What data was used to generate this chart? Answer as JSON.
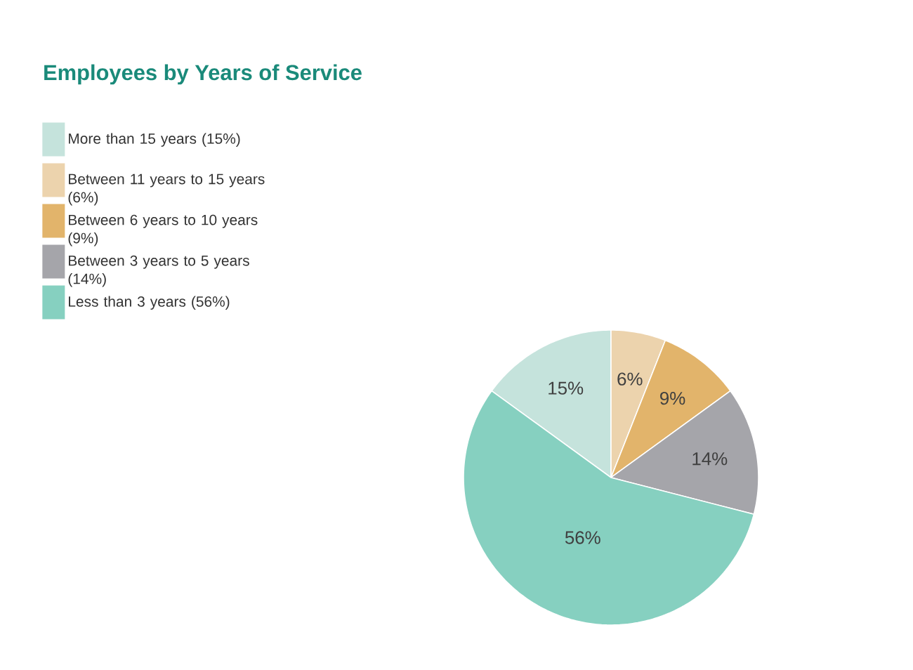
{
  "chart_data": {
    "type": "pie",
    "title": "Employees by Years of Service",
    "categories": [
      "More than 15 years (15%)",
      "Between 11 years to 15 years (6%)",
      "Between 6 years to 10 years (9%)",
      "Between 3 years to 5 years (14%)",
      "Less than 3 years (56%)"
    ],
    "values": [
      15,
      6,
      9,
      14,
      56
    ],
    "value_labels": [
      "15%",
      "6%",
      "9%",
      "14%",
      "56%"
    ],
    "colors": [
      "#c5e3dc",
      "#ecd3ad",
      "#e2b46b",
      "#a5a5aa",
      "#86d0c0"
    ],
    "legend": "top left"
  }
}
